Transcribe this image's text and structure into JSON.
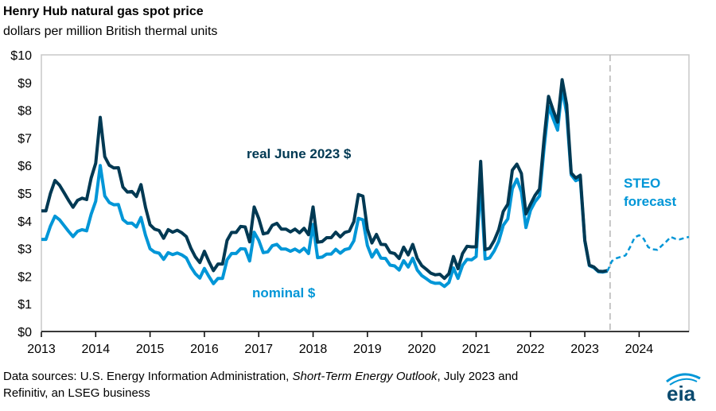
{
  "chart_data": {
    "type": "line",
    "title": "Henry Hub natural gas spot price",
    "subtitle": "dollars per million British thermal units",
    "xlabel": "",
    "ylabel": "",
    "start_month": "2013-01",
    "end_month": "2024-12",
    "ylim": [
      0,
      10
    ],
    "yticks": [
      "$0",
      "$1",
      "$2",
      "$3",
      "$4",
      "$5",
      "$6",
      "$7",
      "$8",
      "$9",
      "$10"
    ],
    "xticks": [
      "2013",
      "2014",
      "2015",
      "2016",
      "2017",
      "2018",
      "2019",
      "2020",
      "2021",
      "2022",
      "2023",
      "2024"
    ],
    "grid": false,
    "forecast_start": "2023-07",
    "series": [
      {
        "name": "real June 2023 $",
        "color": "#003953",
        "style": "solid",
        "values": [
          4.36,
          4.36,
          4.99,
          5.46,
          5.29,
          5.02,
          4.74,
          4.49,
          4.74,
          4.82,
          4.77,
          5.55,
          6.08,
          7.74,
          6.32,
          6.01,
          5.91,
          5.92,
          5.22,
          5.04,
          5.06,
          4.88,
          5.31,
          4.49,
          3.86,
          3.7,
          3.65,
          3.37,
          3.68,
          3.59,
          3.66,
          3.57,
          3.43,
          3.02,
          2.7,
          2.49,
          2.9,
          2.53,
          2.2,
          2.44,
          2.44,
          3.29,
          3.58,
          3.58,
          3.8,
          3.78,
          3.24,
          4.5,
          4.09,
          3.53,
          3.57,
          3.84,
          3.91,
          3.7,
          3.7,
          3.6,
          3.7,
          3.57,
          3.73,
          3.5,
          4.5,
          3.23,
          3.25,
          3.39,
          3.39,
          3.59,
          3.42,
          3.58,
          3.63,
          3.97,
          4.95,
          4.89,
          3.7,
          3.2,
          3.51,
          3.15,
          3.14,
          2.86,
          2.82,
          2.64,
          3.05,
          2.77,
          3.15,
          2.64,
          2.38,
          2.25,
          2.11,
          2.05,
          2.07,
          1.92,
          2.09,
          2.71,
          2.27,
          2.82,
          3.08,
          3.06,
          3.06,
          6.15,
          2.96,
          3.01,
          3.29,
          3.68,
          4.34,
          4.6,
          5.83,
          6.05,
          5.71,
          4.25,
          4.6,
          4.92,
          5.15,
          6.93,
          8.5,
          8.01,
          7.57,
          9.1,
          8.2,
          5.73,
          5.55,
          5.65,
          3.3,
          2.4,
          2.33,
          2.18,
          2.17,
          2.2
        ]
      },
      {
        "name": "nominal $",
        "color": "#0096d7",
        "style": "solid",
        "values": [
          3.33,
          3.33,
          3.81,
          4.17,
          4.04,
          3.83,
          3.62,
          3.43,
          3.62,
          3.68,
          3.64,
          4.24,
          4.71,
          6.0,
          4.9,
          4.66,
          4.58,
          4.59,
          4.05,
          3.91,
          3.92,
          3.78,
          4.12,
          3.48,
          2.99,
          2.87,
          2.83,
          2.61,
          2.85,
          2.78,
          2.84,
          2.77,
          2.66,
          2.34,
          2.09,
          1.93,
          2.28,
          1.99,
          1.73,
          1.92,
          1.92,
          2.59,
          2.82,
          2.82,
          2.99,
          2.98,
          2.55,
          3.59,
          3.3,
          2.85,
          2.88,
          3.1,
          3.15,
          2.98,
          2.98,
          2.9,
          2.98,
          2.88,
          3.01,
          2.82,
          3.87,
          2.67,
          2.69,
          2.8,
          2.8,
          2.97,
          2.83,
          2.96,
          3.0,
          3.28,
          4.09,
          4.04,
          3.11,
          2.69,
          2.95,
          2.65,
          2.64,
          2.4,
          2.37,
          2.22,
          2.56,
          2.33,
          2.65,
          2.22,
          2.02,
          1.91,
          1.79,
          1.74,
          1.75,
          1.63,
          1.77,
          2.3,
          1.92,
          2.39,
          2.61,
          2.59,
          2.71,
          5.35,
          2.62,
          2.66,
          2.91,
          3.26,
          3.84,
          4.07,
          5.16,
          5.51,
          5.05,
          3.76,
          4.38,
          4.69,
          4.9,
          6.6,
          8.14,
          7.7,
          7.28,
          8.8,
          7.88,
          5.66,
          5.45,
          5.53,
          3.27,
          2.38,
          2.31,
          2.16,
          2.15,
          2.18
        ]
      },
      {
        "name": "STEO forecast",
        "color": "#0096d7",
        "style": "dashed",
        "start_index": 125,
        "values": [
          2.18,
          2.55,
          2.65,
          2.7,
          2.75,
          3.05,
          3.4,
          3.48,
          3.35,
          3.05,
          2.97,
          2.95,
          3.1,
          3.25,
          3.42,
          3.35,
          3.33,
          3.38,
          3.42
        ]
      }
    ],
    "annotations": {
      "real": "real June 2023 $",
      "nominal": "nominal $",
      "steo_line1": "STEO",
      "steo_line2": "forecast"
    }
  },
  "footer": {
    "source_prefix": "Data sources: U.S. Energy Information Administration, ",
    "source_italic": "Short-Term Energy Outlook",
    "source_suffix": ", July 2023 and",
    "source_line2": "Refinitiv, an LSEG business"
  },
  "logo": {
    "text": "eia"
  }
}
